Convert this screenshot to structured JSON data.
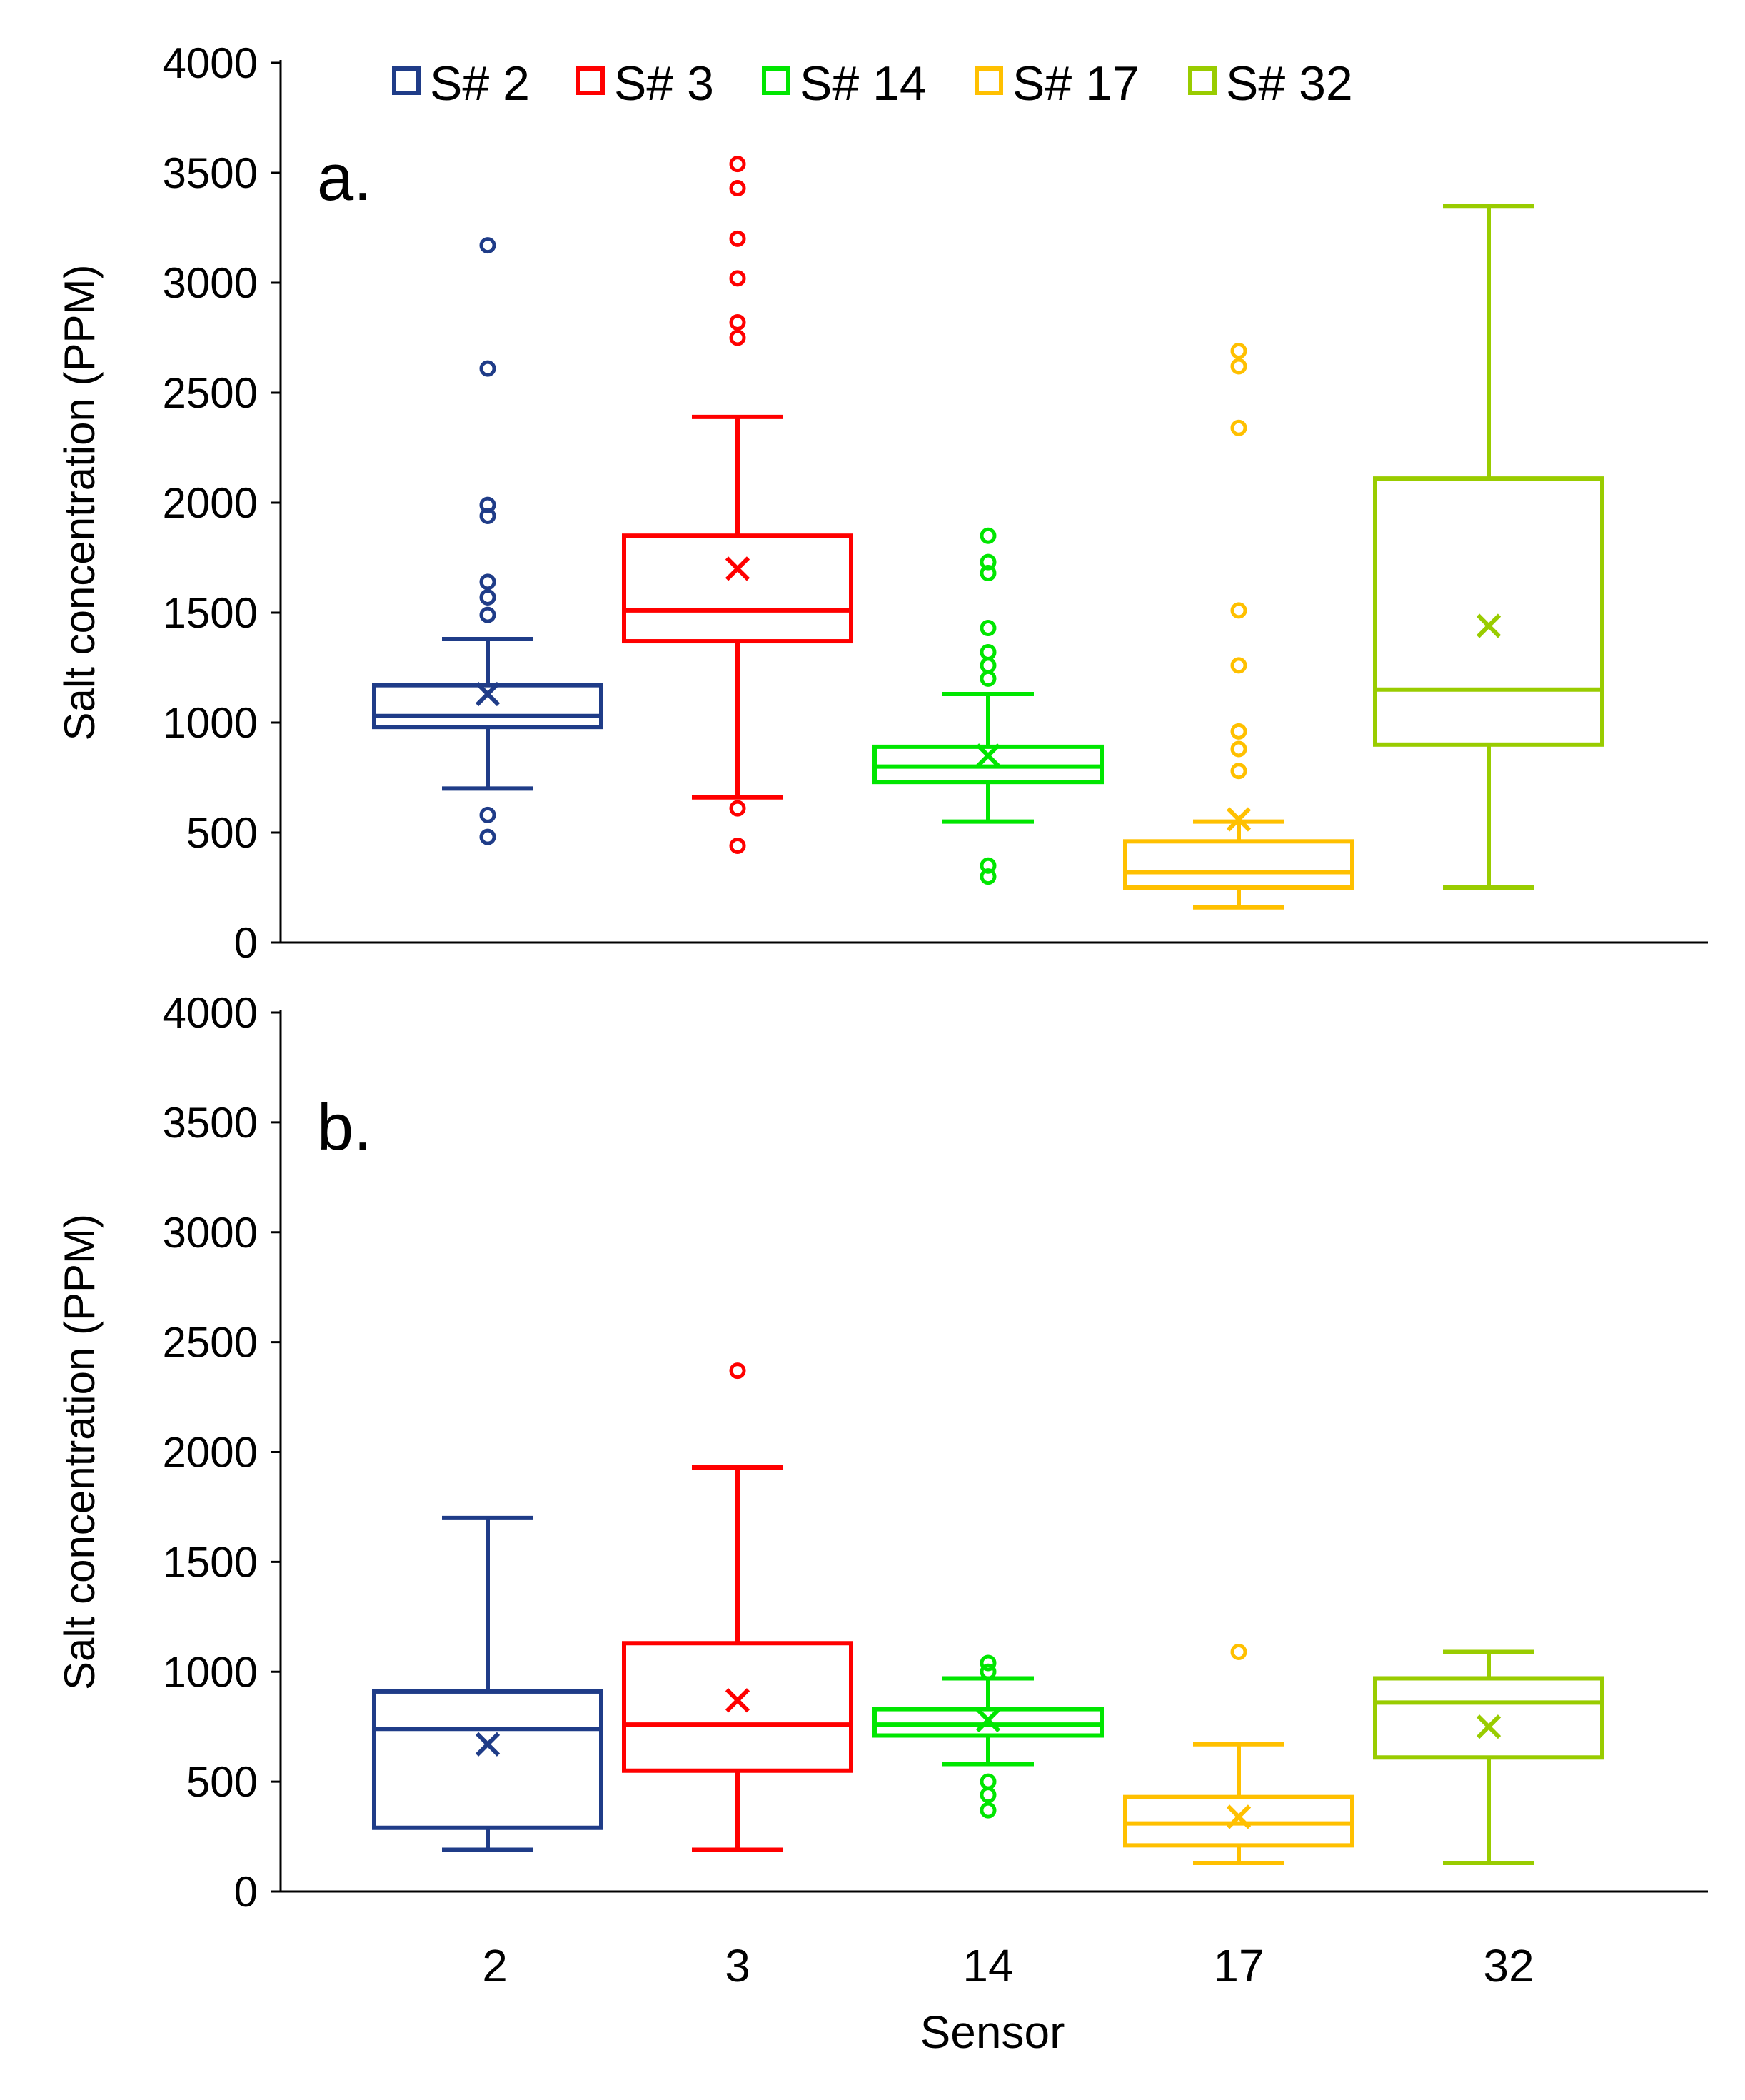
{
  "chart_data": [
    {
      "type": "box",
      "panel_label": "a.",
      "ylabel": "Salt concentration (PPM)",
      "xlabel": "",
      "ylim": [
        0,
        4000
      ],
      "yticks": [
        "0",
        "500",
        "1000",
        "1500",
        "2000",
        "2500",
        "3000",
        "3500",
        "4000"
      ],
      "categories": [
        "2",
        "3",
        "14",
        "17",
        "32"
      ],
      "legend": {
        "placement": "top",
        "entries": [
          "S# 2",
          "S# 3",
          "S# 14",
          "S# 17",
          "S# 32"
        ]
      },
      "series": [
        {
          "name": "S# 2",
          "color": "#1f3c88",
          "whisker_low": 700,
          "q1": 980,
          "median": 1030,
          "q3": 1170,
          "whisker_high": 1380,
          "mean": 1130,
          "outliers": [
            480,
            580,
            1490,
            1570,
            1640,
            1940,
            1990,
            2610,
            3170
          ]
        },
        {
          "name": "S# 3",
          "color": "#ff0000",
          "whisker_low": 660,
          "q1": 1370,
          "median": 1510,
          "q3": 1850,
          "whisker_high": 2390,
          "mean": 1700,
          "outliers": [
            440,
            610,
            2750,
            2820,
            3020,
            3200,
            3430,
            3540
          ]
        },
        {
          "name": "S# 14",
          "color": "#00e600",
          "whisker_low": 550,
          "q1": 730,
          "median": 800,
          "q3": 890,
          "whisker_high": 1130,
          "mean": 850,
          "outliers": [
            300,
            350,
            1200,
            1260,
            1320,
            1430,
            1680,
            1730,
            1850
          ]
        },
        {
          "name": "S# 17",
          "color": "#ffc000",
          "whisker_low": 160,
          "q1": 250,
          "median": 320,
          "q3": 460,
          "whisker_high": 550,
          "mean": 560,
          "outliers": [
            780,
            880,
            960,
            1260,
            1510,
            2340,
            2620,
            2690
          ]
        },
        {
          "name": "S# 32",
          "color": "#99cc00",
          "whisker_low": 250,
          "q1": 900,
          "median": 1150,
          "q3": 2110,
          "whisker_high": 3350,
          "mean": 1440,
          "outliers": []
        }
      ]
    },
    {
      "type": "box",
      "panel_label": "b.",
      "ylabel": "Salt concentration (PPM)",
      "xlabel": "Sensor",
      "ylim": [
        0,
        4000
      ],
      "yticks": [
        "0",
        "500",
        "1000",
        "1500",
        "2000",
        "2500",
        "3000",
        "3500",
        "4000"
      ],
      "categories": [
        "2",
        "3",
        "14",
        "17",
        "32"
      ],
      "series": [
        {
          "name": "S# 2",
          "color": "#1f3c88",
          "whisker_low": 190,
          "q1": 290,
          "median": 740,
          "q3": 910,
          "whisker_high": 1700,
          "mean": 670,
          "outliers": []
        },
        {
          "name": "S# 3",
          "color": "#ff0000",
          "whisker_low": 190,
          "q1": 550,
          "median": 760,
          "q3": 1130,
          "whisker_high": 1930,
          "mean": 870,
          "outliers": [
            2370
          ]
        },
        {
          "name": "S# 14",
          "color": "#00e600",
          "whisker_low": 580,
          "q1": 710,
          "median": 760,
          "q3": 830,
          "whisker_high": 970,
          "mean": 780,
          "outliers": [
            370,
            440,
            500,
            1000,
            1040
          ]
        },
        {
          "name": "S# 17",
          "color": "#ffc000",
          "whisker_low": 130,
          "q1": 210,
          "median": 310,
          "q3": 430,
          "whisker_high": 670,
          "mean": 340,
          "outliers": [
            1090
          ]
        },
        {
          "name": "S# 32",
          "color": "#99cc00",
          "whisker_low": 130,
          "q1": 610,
          "median": 860,
          "q3": 970,
          "whisker_high": 1090,
          "mean": 750,
          "outliers": []
        }
      ]
    }
  ]
}
